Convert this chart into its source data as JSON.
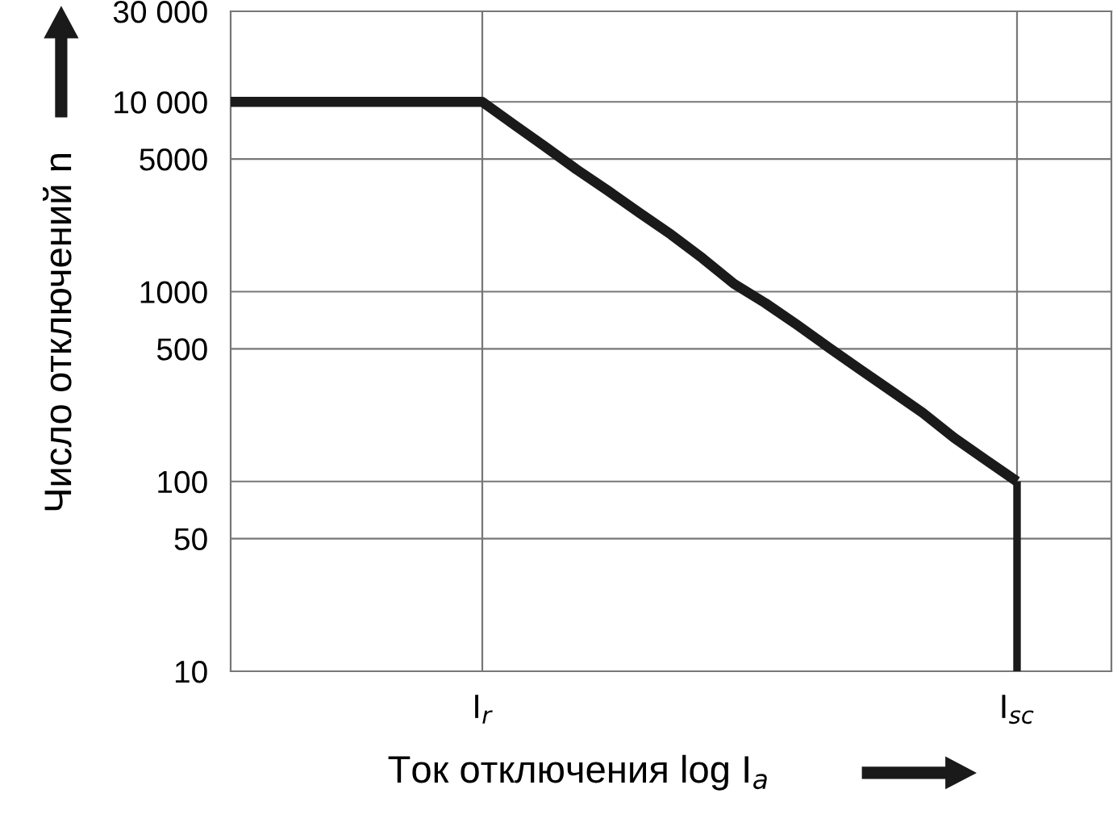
{
  "chart_data": {
    "type": "line",
    "xlabel": "Ток отключения log I$_{a}$",
    "ylabel": "Число отключений n",
    "categories": [
      null,
      null,
      null,
      null,
      null,
      null,
      null,
      null,
      "I$_{r}$",
      null,
      null,
      null,
      null,
      null,
      null,
      null,
      null,
      null,
      null,
      null,
      null,
      null,
      null,
      null,
      null,
      "I$_{sc}$",
      null,
      null,
      null
    ],
    "series": [
      {
        "color": "#1a1a1a",
        "values": [
          10000,
          10000,
          10000,
          10000,
          10000,
          10000,
          10000,
          10000,
          10000,
          7600,
          5800,
          4400,
          3400,
          2600,
          2000,
          1500,
          1100,
          870,
          670,
          510,
          390,
          300,
          230,
          170,
          130,
          100,
          null,
          null,
          null
        ]
      },
      {
        "type": "bar",
        "color": "#1a1a1a",
        "values": [
          null,
          null,
          null,
          null,
          null,
          null,
          null,
          null,
          null,
          null,
          null,
          null,
          null,
          null,
          null,
          null,
          null,
          null,
          null,
          null,
          null,
          null,
          null,
          null,
          null,
          100,
          null,
          null,
          null
        ]
      }
    ],
    "log": "y",
    "ylim": [
      10,
      30000
    ],
    "yticks": [
      10,
      50,
      100,
      500,
      1000,
      5000,
      {
        "value": 10000,
        "label": "10 000"
      },
      {
        "value": 30000,
        "label": "30 000"
      }
    ],
    "grid": true,
    "marker": "none",
    "line_style": "solid"
  }
}
